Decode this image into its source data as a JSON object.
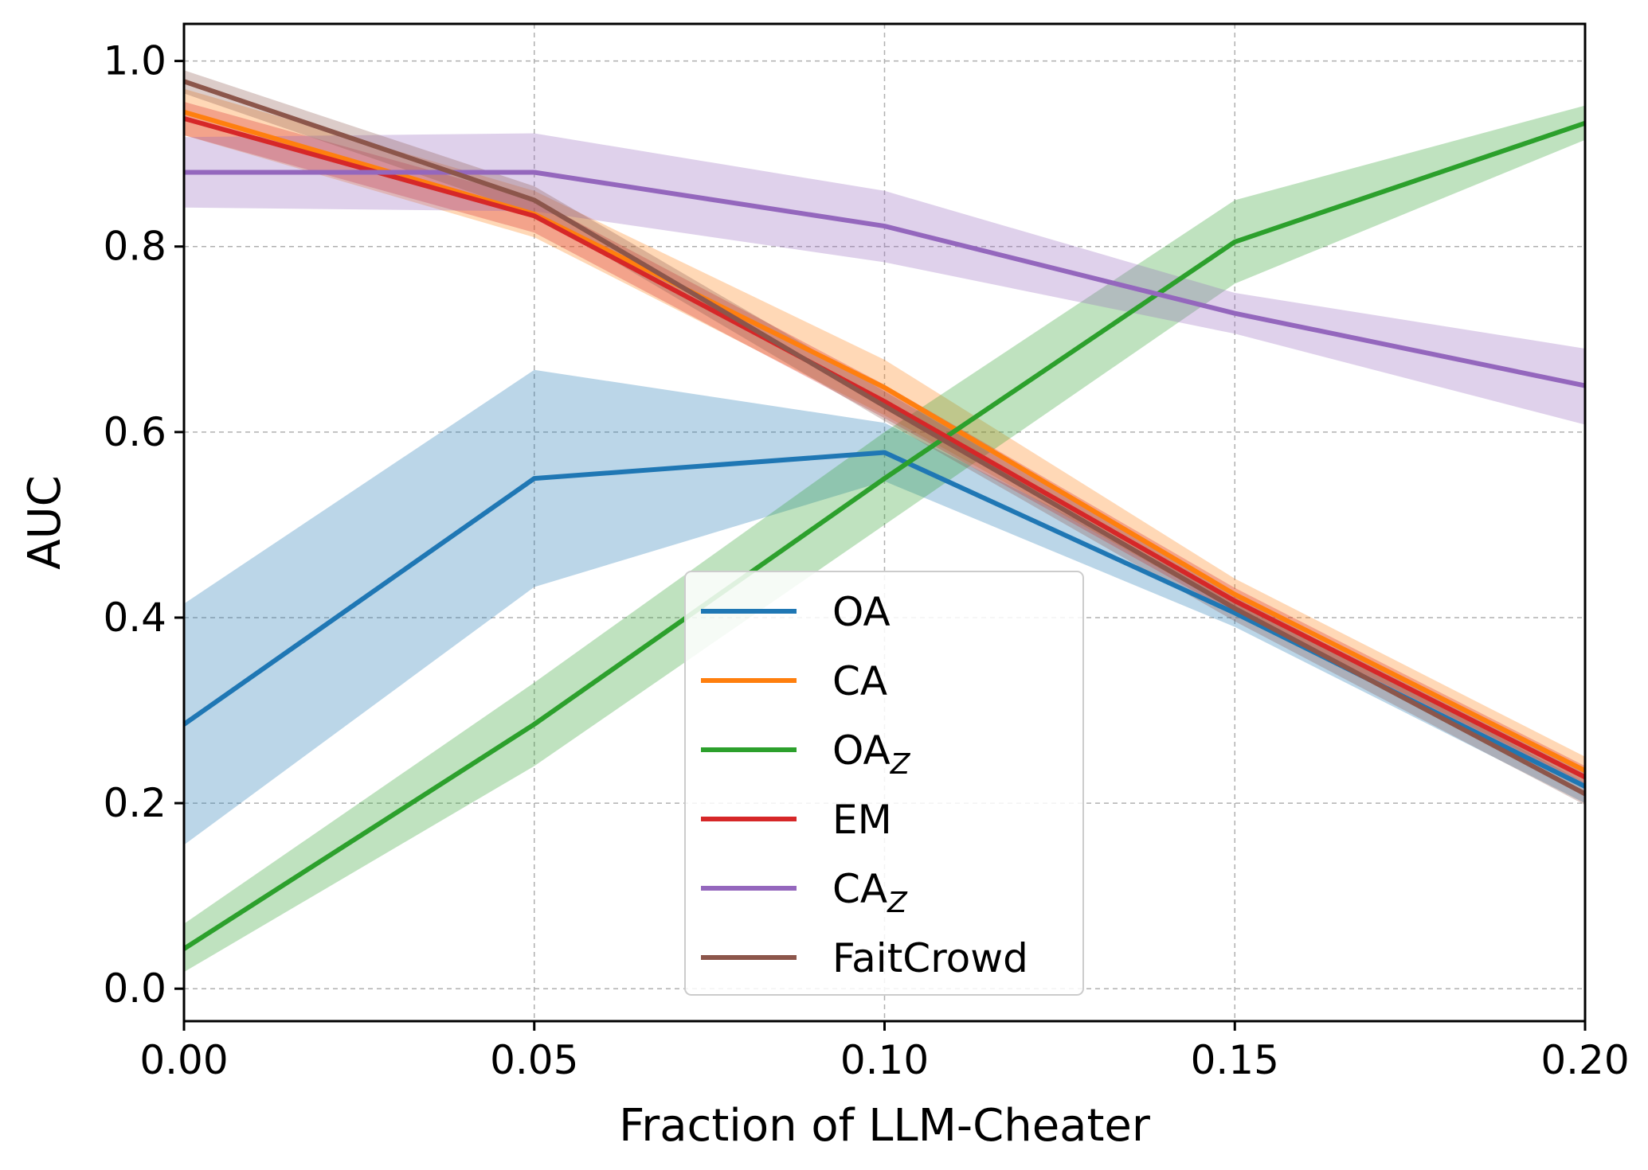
{
  "chart_data": {
    "type": "line",
    "title": "",
    "xlabel": "Fraction of LLM-Cheater",
    "ylabel": "AUC",
    "xlim": [
      0.0,
      0.2
    ],
    "ylim": [
      -0.035,
      1.04
    ],
    "x": [
      0.0,
      0.05,
      0.1,
      0.15,
      0.2
    ],
    "xticks": [
      0.0,
      0.05,
      0.1,
      0.15,
      0.2
    ],
    "xtick_labels": [
      "0.00",
      "0.05",
      "0.10",
      "0.15",
      "0.20"
    ],
    "yticks": [
      0.0,
      0.2,
      0.4,
      0.6,
      0.8,
      1.0
    ],
    "ytick_labels": [
      "0.0",
      "0.2",
      "0.4",
      "0.6",
      "0.8",
      "1.0"
    ],
    "grid": true,
    "legend_position": "lower-center",
    "series": [
      {
        "name": "OA",
        "name_sub": "",
        "color": "#1f77b4",
        "values": [
          0.285,
          0.55,
          0.578,
          0.405,
          0.218
        ],
        "lower": [
          0.155,
          0.433,
          0.547,
          0.39,
          0.2
        ],
        "upper": [
          0.415,
          0.667,
          0.61,
          0.42,
          0.236
        ]
      },
      {
        "name": "CA",
        "name_sub": "",
        "color": "#ff7f0e",
        "values": [
          0.945,
          0.835,
          0.648,
          0.425,
          0.235
        ],
        "lower": [
          0.92,
          0.81,
          0.618,
          0.408,
          0.222
        ],
        "upper": [
          0.97,
          0.86,
          0.678,
          0.442,
          0.25
        ]
      },
      {
        "name": "OA",
        "name_sub": "Z",
        "color": "#2ca02c",
        "values": [
          0.043,
          0.285,
          0.55,
          0.805,
          0.933
        ],
        "lower": [
          0.018,
          0.24,
          0.5,
          0.76,
          0.915
        ],
        "upper": [
          0.07,
          0.33,
          0.6,
          0.85,
          0.952
        ]
      },
      {
        "name": "EM",
        "name_sub": "",
        "color": "#d62728",
        "values": [
          0.938,
          0.833,
          0.633,
          0.418,
          0.228
        ],
        "lower": [
          0.92,
          0.815,
          0.615,
          0.404,
          0.216
        ],
        "upper": [
          0.956,
          0.851,
          0.651,
          0.432,
          0.24
        ]
      },
      {
        "name": "CA",
        "name_sub": "Z",
        "color": "#9467bd",
        "values": [
          0.88,
          0.88,
          0.822,
          0.728,
          0.65
        ],
        "lower": [
          0.842,
          0.838,
          0.783,
          0.706,
          0.608
        ],
        "upper": [
          0.918,
          0.922,
          0.86,
          0.75,
          0.69
        ]
      },
      {
        "name": "FaitCrowd",
        "name_sub": "",
        "color": "#8c564b",
        "values": [
          0.978,
          0.85,
          0.628,
          0.41,
          0.21
        ],
        "lower": [
          0.965,
          0.835,
          0.612,
          0.396,
          0.198
        ],
        "upper": [
          0.99,
          0.865,
          0.644,
          0.424,
          0.222
        ]
      }
    ]
  }
}
